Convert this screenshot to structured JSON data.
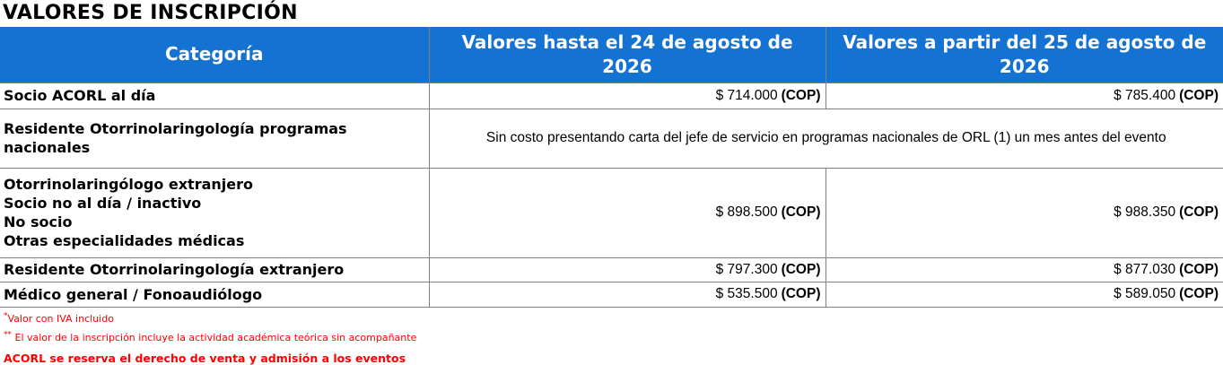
{
  "title": "VALORES DE INSCRIPCIÓN",
  "colors": {
    "header_bg": "#1473D2",
    "header_text": "#FFFFFF",
    "note_red": "#FF0000",
    "border_gray": "#808080"
  },
  "table": {
    "headers": [
      "Categoría",
      "Valores hasta el 24 de agosto de  2026",
      "Valores a partir del 25 de agosto de 2026"
    ],
    "currency_label": "(COP)",
    "rows": [
      {
        "category": "Socio ACORL al día",
        "value_early": "$ 714.000",
        "value_late": "$ 785.400"
      },
      {
        "category": "Residente Otorrinolaringología programas nacionales",
        "merged_note": "Sin costo presentando carta del jefe de servicio en programas nacionales de ORL (1) un mes antes del evento"
      },
      {
        "category_lines": [
          "Otorrinolaringólogo extranjero",
          "Socio no al día / inactivo",
          "No socio",
          "Otras especialidades médicas"
        ],
        "value_early": "$ 898.500",
        "value_late": "$ 988.350"
      },
      {
        "category": "Residente Otorrinolaringología extranjero",
        "value_early": "$ 797.300",
        "value_late": "$ 877.030"
      },
      {
        "category": "Médico general / Fonoaudiólogo",
        "value_early": "$ 535.500",
        "value_late": "$ 589.050"
      }
    ]
  },
  "notes": [
    {
      "marker": "*",
      "text": "Valor con IVA incluido"
    },
    {
      "marker": "**",
      "text": " El valor de la inscripción incluye la actividad académica teórica sin acompañante"
    },
    {
      "marker": "",
      "text": "ACORL se reserva el derecho de venta y admisión a los eventos"
    }
  ]
}
